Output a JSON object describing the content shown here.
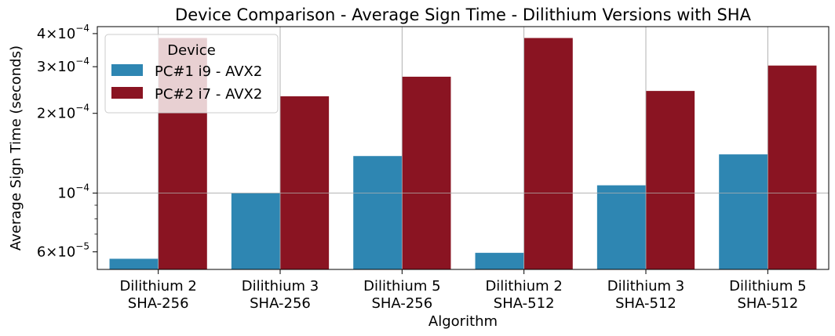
{
  "chart_data": {
    "type": "bar",
    "title": "Device Comparison - Average Sign Time - Dilithium Versions with SHA",
    "xlabel": "Algorithm",
    "ylabel": "Average Sign Time (seconds)",
    "yscale": "log",
    "ylim": [
      5.15e-05,
      0.000425
    ],
    "grid": true,
    "categories": [
      [
        "Dilithium 2",
        "SHA-256"
      ],
      [
        "Dilithium 3",
        "SHA-256"
      ],
      [
        "Dilithium 5",
        "SHA-256"
      ],
      [
        "Dilithium 2",
        "SHA-512"
      ],
      [
        "Dilithium 3",
        "SHA-512"
      ],
      [
        "Dilithium 5",
        "SHA-512"
      ]
    ],
    "series": [
      {
        "name": "PC#1 i9 - AVX2",
        "color": "#2e86b2",
        "values": [
          5.65e-05,
          0.0001,
          0.000138,
          5.95e-05,
          0.000107,
          0.00014
        ]
      },
      {
        "name": "PC#2 i7 - AVX2",
        "color": "#8a1422",
        "values": [
          0.000385,
          0.000232,
          0.000275,
          0.000385,
          0.000243,
          0.000303
        ]
      }
    ],
    "yticks": [
      {
        "value": 6e-05,
        "mantissa": "6",
        "exponent": "−5"
      },
      {
        "value": 0.0001,
        "mantissa": "",
        "exponent": "−4"
      },
      {
        "value": 0.0002,
        "mantissa": "2",
        "exponent": "−4"
      },
      {
        "value": 0.0003,
        "mantissa": "3",
        "exponent": "−4"
      },
      {
        "value": 0.0004,
        "mantissa": "4",
        "exponent": "−4"
      }
    ],
    "minor_ticks": [
      7e-05,
      8e-05,
      9e-05
    ],
    "legend": {
      "title": "Device",
      "placement": "top-left"
    }
  }
}
